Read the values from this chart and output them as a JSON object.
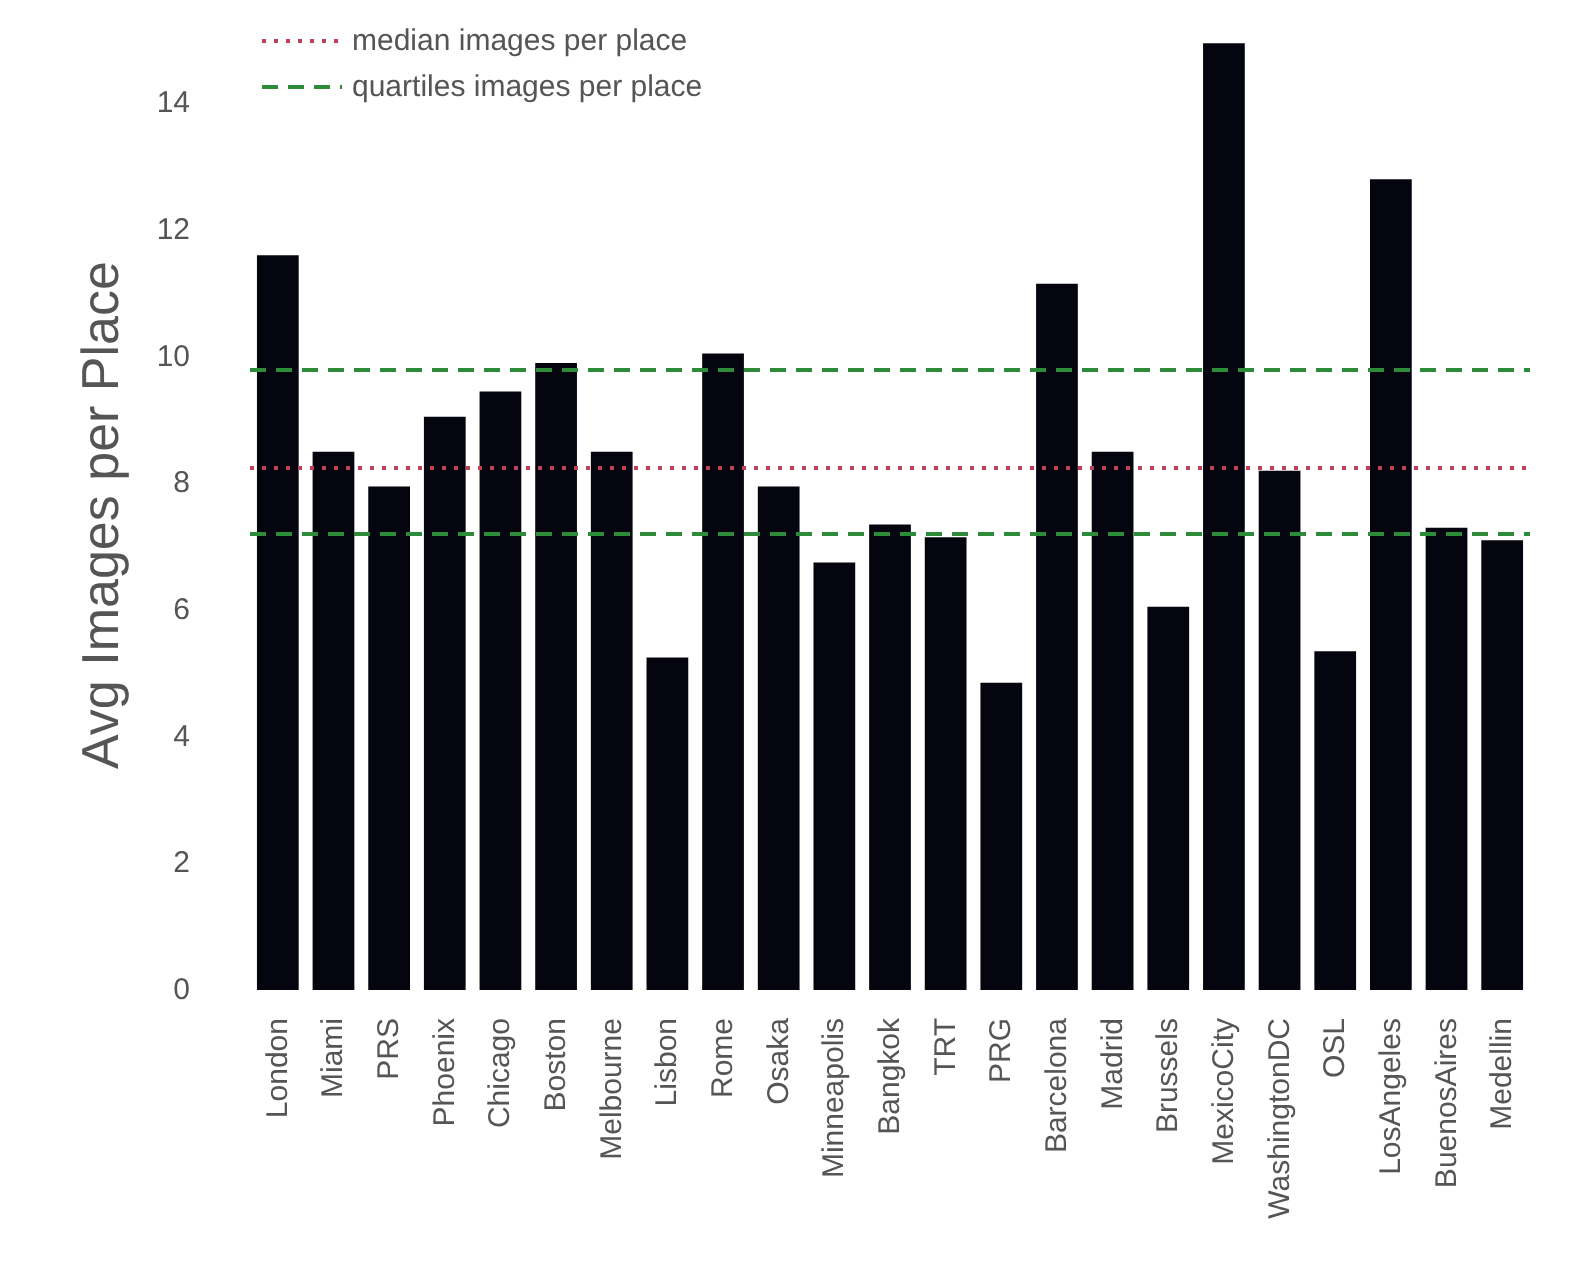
{
  "chart_data": {
    "type": "bar",
    "ylabel": "Avg Images per Place",
    "categories": [
      "London",
      "Miami",
      "PRS",
      "Phoenix",
      "Chicago",
      "Boston",
      "Melbourne",
      "Lisbon",
      "Rome",
      "Osaka",
      "Minneapolis",
      "Bangkok",
      "TRT",
      "PRG",
      "Barcelona",
      "Madrid",
      "Brussels",
      "MexicoCity",
      "WashingtonDC",
      "OSL",
      "LosAngeles",
      "BuenosAires",
      "Medellin"
    ],
    "values": [
      11.6,
      8.5,
      7.95,
      9.05,
      9.45,
      9.9,
      8.5,
      5.25,
      10.05,
      7.95,
      6.75,
      7.35,
      7.15,
      4.85,
      11.15,
      8.5,
      6.05,
      14.95,
      8.2,
      5.35,
      12.8,
      7.3,
      7.1
    ],
    "color": "#050510",
    "ylim": [
      0,
      15
    ],
    "yticks": [
      0,
      2,
      4,
      6,
      8,
      10,
      12,
      14
    ],
    "grid": false,
    "legend": "top left",
    "ref_lines": [
      {
        "axis": "y",
        "value": 8.25,
        "label": "median images per place",
        "color": "#c0405a",
        "line_style": "dotted"
      },
      {
        "axis": "y",
        "value": 9.8,
        "label": "quartiles images per place",
        "color": "#2e8b3a",
        "line_style": "dashed"
      },
      {
        "axis": "y",
        "value": 7.2,
        "color": "#2e8b3a",
        "line_style": "dashed"
      }
    ]
  }
}
